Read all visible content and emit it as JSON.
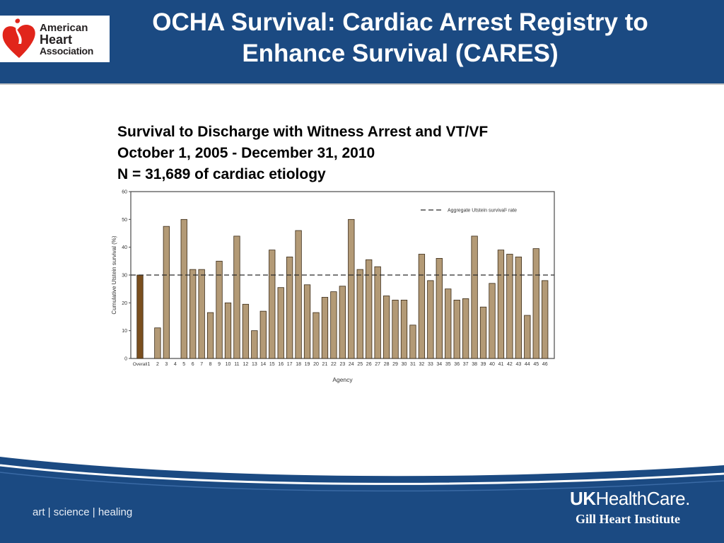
{
  "header": {
    "title_line1": "OCHA Survival: Cardiac Arrest Registry to",
    "title_line2": "Enhance Survival (CARES)"
  },
  "logo": {
    "line1": "American",
    "line2": "Heart",
    "line3": "Association",
    "icon": "heart-torch-icon"
  },
  "subtitle": {
    "line1": "Survival to Discharge with Witness Arrest and VT/VF",
    "line2": "October 1, 2005 - December 31, 2010",
    "line3": "N =  31,689 of cardiac etiology"
  },
  "footer": {
    "tagline": "art | science | healing",
    "brand_uk": "UK",
    "brand_hc": "HealthCare.",
    "institute": "Gill Heart Institute"
  },
  "colors": {
    "header_bg": "#1b4a82",
    "bar_fill": "#b39a76",
    "overall_bar_fill": "#7a4f1f",
    "footer_bg": "#1b4a82"
  },
  "chart_data": {
    "type": "bar",
    "xlabel": "Agency",
    "ylabel": "Cumulative Utstein survival (%)",
    "ylim": [
      0,
      60
    ],
    "yticks": [
      0,
      10,
      20,
      30,
      40,
      50,
      60
    ],
    "grid": false,
    "legend": {
      "label": "Aggregate Utstein survival¹ rate",
      "placement": "top-right"
    },
    "reference_line": 30,
    "categories": [
      "Overall",
      "1",
      "2",
      "3",
      "4",
      "5",
      "6",
      "7",
      "8",
      "9",
      "10",
      "11",
      "12",
      "13",
      "14",
      "15",
      "16",
      "17",
      "18",
      "19",
      "20",
      "21",
      "22",
      "23",
      "24",
      "25",
      "26",
      "27",
      "28",
      "29",
      "30",
      "31",
      "32",
      "33",
      "34",
      "35",
      "36",
      "37",
      "38",
      "39",
      "40",
      "41",
      "42",
      "43",
      "44",
      "45",
      "46"
    ],
    "values": [
      30,
      0,
      11,
      47.5,
      0,
      50,
      32,
      32,
      16.5,
      35,
      20,
      44,
      19.5,
      10,
      17,
      39,
      25.5,
      36.5,
      46,
      26.5,
      16.5,
      22,
      24,
      26,
      50,
      32,
      35.5,
      33,
      22.5,
      21,
      21,
      12,
      37.5,
      28,
      36,
      25,
      21,
      21.5,
      44,
      18.5,
      27,
      39,
      37.5,
      36.5,
      15.5,
      39.5,
      28
    ]
  }
}
